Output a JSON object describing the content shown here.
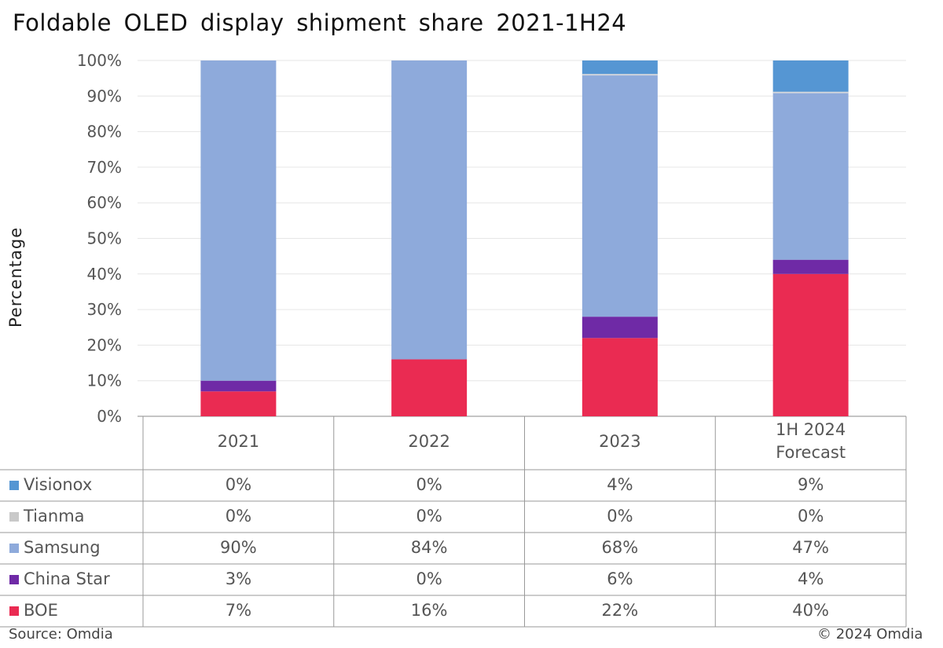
{
  "chart_data": {
    "type": "bar",
    "stacked": true,
    "title": "Foldable  OLED display  shipment  share 2021-1H24",
    "xlabel": "",
    "ylabel": "Percentage",
    "ylim": [
      0,
      100
    ],
    "yticks": [
      "0%",
      "10%",
      "20%",
      "30%",
      "40%",
      "50%",
      "60%",
      "70%",
      "80%",
      "90%",
      "100%"
    ],
    "grid": true,
    "categories": [
      "2021",
      "2022",
      "2023",
      "1H 2024 Forecast"
    ],
    "category_lines": [
      [
        "2021"
      ],
      [
        "2022"
      ],
      [
        "2023"
      ],
      [
        "1H 2024",
        "Forecast"
      ]
    ],
    "series": [
      {
        "name": "Visionox",
        "color": "#5596d3",
        "values": [
          0,
          0,
          4,
          9
        ],
        "labels": [
          "0%",
          "0%",
          "4%",
          "9%"
        ]
      },
      {
        "name": "Tianma",
        "color": "#c9c9c9",
        "values": [
          0,
          0,
          0,
          0
        ],
        "labels": [
          "0%",
          "0%",
          "0%",
          "0%"
        ]
      },
      {
        "name": "Samsung",
        "color": "#8eaadb",
        "values": [
          90,
          84,
          68,
          47
        ],
        "labels": [
          "90%",
          "84%",
          "68%",
          "47%"
        ]
      },
      {
        "name": "China Star",
        "color": "#6f2aa6",
        "values": [
          3,
          0,
          6,
          4
        ],
        "labels": [
          "3%",
          "0%",
          "6%",
          "4%"
        ]
      },
      {
        "name": "BOE",
        "color": "#ea2b52",
        "values": [
          7,
          16,
          22,
          40
        ],
        "labels": [
          "7%",
          "16%",
          "22%",
          "40%"
        ]
      }
    ],
    "legend": "data-table-left"
  },
  "footer": {
    "source": "Source: Omdia",
    "copyright": "© 2024 Omdia"
  }
}
